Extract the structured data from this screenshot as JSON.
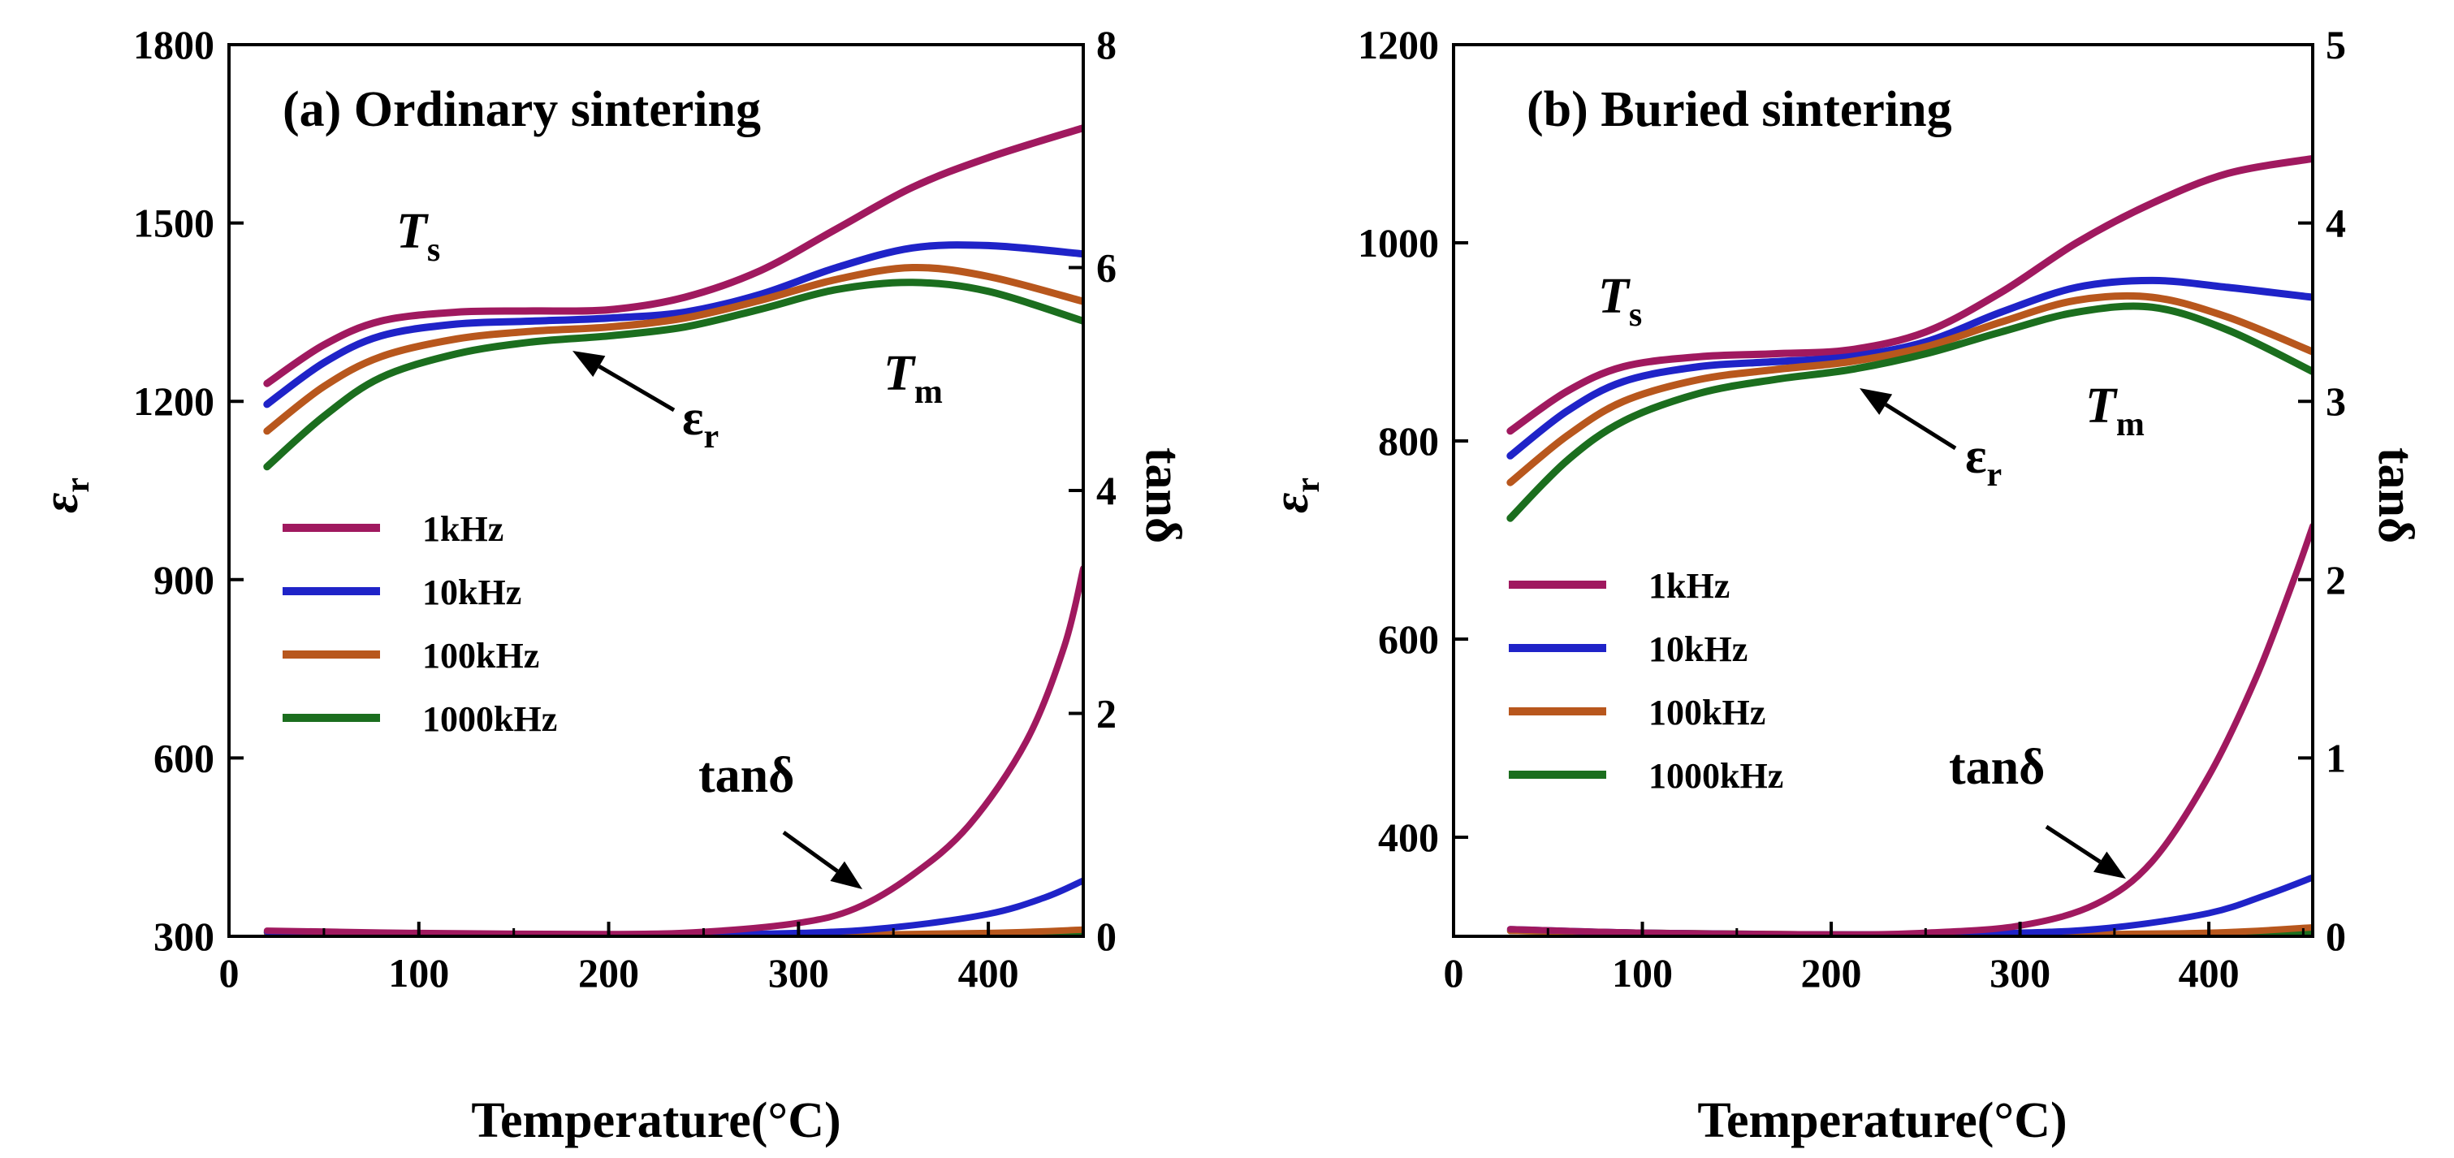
{
  "chart_data": [
    {
      "type": "line",
      "panel": "a",
      "title": "(a) Ordinary sintering",
      "xlabel": "Temperature(°C)",
      "ylabel_left": "εr",
      "ylabel_right": "tanδ",
      "xlim": [
        0,
        450
      ],
      "ylim_left": [
        300,
        1800
      ],
      "ylim_right": [
        0,
        8
      ],
      "xticks": [
        0,
        100,
        200,
        300,
        400
      ],
      "yticks_left": [
        300,
        600,
        900,
        1200,
        1500,
        1800
      ],
      "yticks_right": [
        0,
        2,
        4,
        6,
        8
      ],
      "colors": {
        "1kHz": "#a0195f",
        "10kHz": "#1f23c8",
        "100kHz": "#b8571d",
        "1000kHz": "#1b6e1e"
      },
      "legend": [
        "1kHz",
        "10kHz",
        "100kHz",
        "1000kHz"
      ],
      "annotations": {
        "ts_main": "T",
        "ts_sub": "s",
        "tm_main": "T",
        "tm_sub": "m",
        "er_main": "ε",
        "er_sub": "r",
        "tan": "tanδ"
      },
      "permittivity": [
        {
          "name": "1kHz",
          "x": [
            20,
            50,
            80,
            120,
            160,
            200,
            240,
            280,
            320,
            360,
            400,
            450
          ],
          "y": [
            1230,
            1295,
            1335,
            1350,
            1352,
            1354,
            1375,
            1420,
            1490,
            1560,
            1610,
            1660
          ]
        },
        {
          "name": "10kHz",
          "x": [
            20,
            50,
            80,
            120,
            160,
            200,
            240,
            280,
            320,
            360,
            400,
            450
          ],
          "y": [
            1195,
            1265,
            1310,
            1330,
            1335,
            1340,
            1350,
            1380,
            1425,
            1458,
            1462,
            1448
          ]
        },
        {
          "name": "100kHz",
          "x": [
            20,
            50,
            80,
            120,
            160,
            200,
            240,
            280,
            320,
            360,
            400,
            450
          ],
          "y": [
            1150,
            1225,
            1275,
            1305,
            1318,
            1325,
            1340,
            1370,
            1405,
            1425,
            1410,
            1368
          ]
        },
        {
          "name": "1000kHz",
          "x": [
            20,
            50,
            80,
            120,
            160,
            200,
            240,
            280,
            320,
            360,
            400,
            450
          ],
          "y": [
            1090,
            1175,
            1240,
            1280,
            1300,
            1310,
            1325,
            1355,
            1388,
            1400,
            1385,
            1335
          ]
        }
      ],
      "tan_delta": [
        {
          "name": "1kHz",
          "x": [
            20,
            100,
            200,
            250,
            300,
            330,
            360,
            390,
            420,
            440,
            450
          ],
          "y": [
            0.05,
            0.03,
            0.02,
            0.04,
            0.12,
            0.25,
            0.55,
            1.0,
            1.75,
            2.6,
            3.3
          ]
        },
        {
          "name": "10kHz",
          "x": [
            20,
            100,
            200,
            300,
            350,
            400,
            430,
            450
          ],
          "y": [
            0.04,
            0.02,
            0.01,
            0.03,
            0.08,
            0.2,
            0.35,
            0.5
          ]
        },
        {
          "name": "100kHz",
          "x": [
            20,
            100,
            200,
            300,
            400,
            450
          ],
          "y": [
            0.03,
            0.02,
            0.01,
            0.01,
            0.03,
            0.06
          ]
        },
        {
          "name": "1000kHz",
          "x": [
            20,
            100,
            200,
            300,
            400,
            450
          ],
          "y": [
            0.03,
            0.02,
            0.01,
            0.01,
            0.01,
            0.02
          ]
        }
      ]
    },
    {
      "type": "line",
      "panel": "b",
      "title": "(b)  Buried sintering",
      "xlabel": "Temperature(°C)",
      "ylabel_left": "εr",
      "ylabel_right": "tanδ",
      "xlim": [
        0,
        455
      ],
      "ylim_left": [
        300,
        1200
      ],
      "ylim_right": [
        0,
        5
      ],
      "xticks": [
        0,
        100,
        200,
        300,
        400
      ],
      "yticks_left": [
        400,
        600,
        800,
        1000,
        1200
      ],
      "yticks_right": [
        0,
        1,
        2,
        3,
        4,
        5
      ],
      "colors": {
        "1kHz": "#a0195f",
        "10kHz": "#1f23c8",
        "100kHz": "#b8571d",
        "1000kHz": "#1b6e1e"
      },
      "legend": [
        "1kHz",
        "10kHz",
        "100kHz",
        "1000kHz"
      ],
      "annotations": {
        "ts_main": "T",
        "ts_sub": "s",
        "tm_main": "T",
        "tm_sub": "m",
        "er_main": "ε",
        "er_sub": "r",
        "tan": "tanδ"
      },
      "permittivity": [
        {
          "name": "1kHz",
          "x": [
            30,
            60,
            90,
            130,
            170,
            210,
            250,
            290,
            330,
            370,
            410,
            455
          ],
          "y": [
            810,
            850,
            875,
            885,
            888,
            892,
            910,
            950,
            1000,
            1040,
            1070,
            1085
          ]
        },
        {
          "name": "10kHz",
          "x": [
            30,
            60,
            90,
            130,
            170,
            210,
            250,
            290,
            330,
            370,
            410,
            455
          ],
          "y": [
            785,
            830,
            860,
            875,
            880,
            885,
            900,
            930,
            955,
            962,
            955,
            945
          ]
        },
        {
          "name": "100kHz",
          "x": [
            30,
            60,
            90,
            130,
            170,
            210,
            250,
            290,
            330,
            370,
            410,
            455
          ],
          "y": [
            758,
            805,
            840,
            862,
            872,
            880,
            895,
            920,
            942,
            945,
            925,
            890
          ]
        },
        {
          "name": "1000kHz",
          "x": [
            30,
            60,
            90,
            130,
            170,
            210,
            250,
            290,
            330,
            370,
            410,
            455
          ],
          "y": [
            722,
            780,
            820,
            848,
            862,
            872,
            888,
            910,
            930,
            935,
            912,
            870
          ]
        }
      ],
      "tan_delta": [
        {
          "name": "1kHz",
          "x": [
            30,
            100,
            200,
            250,
            300,
            340,
            370,
            400,
            425,
            445,
            455
          ],
          "y": [
            0.04,
            0.02,
            0.01,
            0.02,
            0.06,
            0.18,
            0.42,
            0.9,
            1.45,
            2.0,
            2.3
          ]
        },
        {
          "name": "10kHz",
          "x": [
            30,
            100,
            200,
            300,
            350,
            400,
            430,
            455
          ],
          "y": [
            0.04,
            0.02,
            0.01,
            0.02,
            0.05,
            0.13,
            0.23,
            0.33
          ]
        },
        {
          "name": "100kHz",
          "x": [
            30,
            100,
            200,
            300,
            400,
            455
          ],
          "y": [
            0.03,
            0.02,
            0.01,
            0.01,
            0.02,
            0.05
          ]
        },
        {
          "name": "1000kHz",
          "x": [
            30,
            100,
            200,
            300,
            400,
            455
          ],
          "y": [
            0.03,
            0.02,
            0.01,
            0.01,
            0.01,
            0.02
          ]
        }
      ]
    }
  ]
}
